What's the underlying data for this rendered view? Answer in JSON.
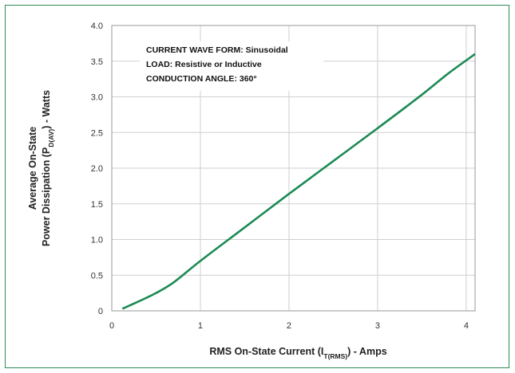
{
  "chart_data": {
    "type": "line",
    "title": "",
    "xlabel": {
      "main": "RMS On-State Current (I",
      "sub": "T(RMS)",
      "tail": ") - Amps"
    },
    "ylabel": {
      "line1": "Average On-State",
      "line2_main": "Power Dissipation (P",
      "line2_sub": "D(AV)",
      "line2_tail": ") - Watts"
    },
    "xlim": [
      0,
      4.1
    ],
    "ylim": [
      0,
      4.0
    ],
    "x_ticks": [
      "0",
      "1",
      "2",
      "3",
      "4"
    ],
    "x_tick_values": [
      0,
      1,
      2,
      3,
      4
    ],
    "y_ticks": [
      "0",
      "0.5",
      "1.0",
      "1.5",
      "2.0",
      "2.5",
      "3.0",
      "3.5",
      "4.0"
    ],
    "y_tick_values": [
      0,
      0.5,
      1.0,
      1.5,
      2.0,
      2.5,
      3.0,
      3.5,
      4.0
    ],
    "grid": true,
    "annotations": [
      "CURRENT WAVE FORM: Sinusoidal",
      "LOAD: Resistive or Inductive",
      "CONDUCTION ANGLE: 360°"
    ],
    "series": [
      {
        "color": "#1b8a55",
        "x": [
          0.12,
          0.3,
          0.5,
          0.7,
          1.0,
          1.5,
          2.0,
          2.5,
          3.0,
          3.5,
          3.8,
          4.1
        ],
        "y": [
          0.03,
          0.13,
          0.25,
          0.4,
          0.7,
          1.17,
          1.64,
          2.1,
          2.56,
          3.03,
          3.33,
          3.6
        ]
      }
    ]
  }
}
